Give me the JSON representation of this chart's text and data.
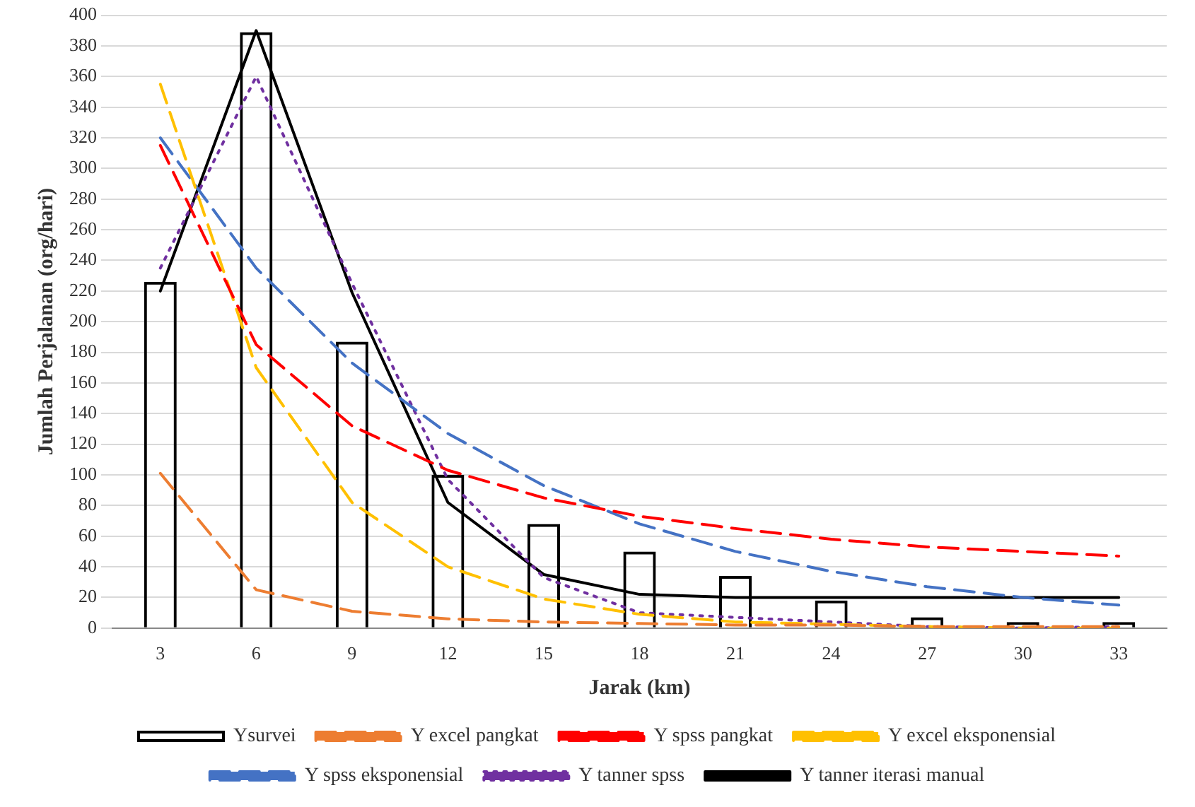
{
  "chart_data": {
    "type": "bar",
    "xlabel": "Jarak (km)",
    "ylabel": "Jumlah Perjalanan (org/hari)",
    "categories": [
      "3",
      "6",
      "9",
      "12",
      "15",
      "18",
      "21",
      "24",
      "27",
      "30",
      "33"
    ],
    "ylim": [
      0,
      400
    ],
    "yticks": [
      0,
      20,
      40,
      60,
      80,
      100,
      120,
      140,
      160,
      180,
      200,
      220,
      240,
      260,
      280,
      300,
      320,
      340,
      360,
      380,
      400
    ],
    "grid": "y",
    "legend": "bottom",
    "series": [
      {
        "name": "Ysurvei",
        "color": "#000000",
        "values": [
          226,
          389,
          187,
          100,
          68,
          50,
          34,
          18,
          7,
          4,
          4
        ]
      },
      {
        "name": "Y excel pangkat",
        "type": "line",
        "color": "#ed7d31",
        "line_style": "dashed",
        "values": [
          101,
          25,
          11,
          6,
          4,
          3,
          2,
          2,
          1,
          1,
          1
        ]
      },
      {
        "name": "Y spss pangkat",
        "type": "line",
        "color": "#ff0000",
        "line_style": "dashed",
        "values": [
          315,
          185,
          132,
          103,
          85,
          73,
          65,
          58,
          53,
          50,
          47
        ]
      },
      {
        "name": "Y excel eksponensial",
        "type": "line",
        "color": "#ffc000",
        "line_style": "dashed",
        "values": [
          355,
          170,
          82,
          40,
          19,
          9,
          4,
          null,
          1,
          0,
          0
        ]
      },
      {
        "name": "Y spss eksponensial",
        "type": "line",
        "color": "#4472c4",
        "line_style": "dashed",
        "values": [
          320,
          235,
          173,
          127,
          93,
          68,
          50,
          37,
          27,
          20,
          15
        ]
      },
      {
        "name": "Y tanner spss",
        "type": "line",
        "color": "#7030a0",
        "line_style": "dotted",
        "values": [
          235,
          360,
          225,
          97,
          33,
          10,
          null,
          null,
          1,
          0,
          1
        ]
      },
      {
        "name": "Y tanner iterasi manual",
        "type": "line",
        "color": "#000000",
        "line_style": "solid",
        "values": [
          220,
          390,
          219,
          82,
          35,
          22,
          20,
          20,
          20,
          20,
          20
        ]
      }
    ]
  }
}
